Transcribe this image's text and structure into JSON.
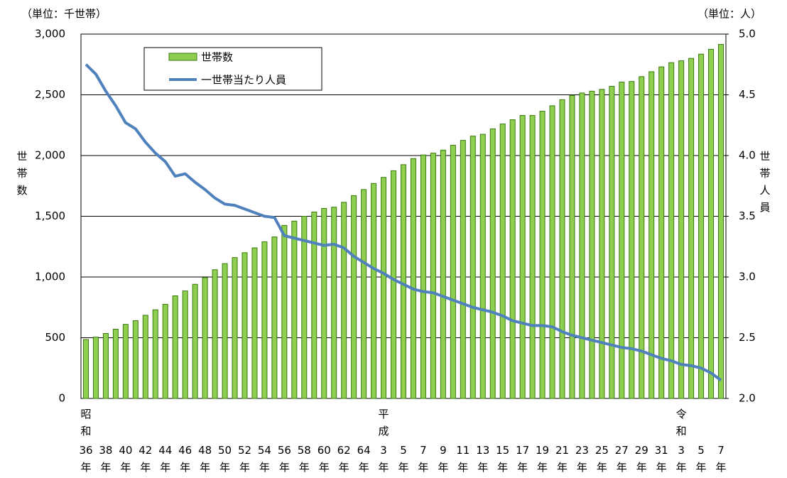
{
  "chart_data": {
    "type": "bar-line",
    "unit_left": "（単位：千世帯）",
    "unit_right": "（単位：人）",
    "ylabel": "世帯数",
    "y2label": "世帯人員",
    "categories": [
      "36年",
      null,
      "38年",
      null,
      "40年",
      null,
      "42年",
      null,
      "44年",
      null,
      "46年",
      null,
      "48年",
      null,
      "50年",
      null,
      "52年",
      null,
      "54年",
      null,
      "56年",
      null,
      "58年",
      null,
      "60年",
      null,
      "62年",
      null,
      "64年",
      null,
      "3年",
      null,
      "5年",
      null,
      "7年",
      null,
      "9年",
      null,
      "11年",
      null,
      "13年",
      null,
      "15年",
      null,
      "17年",
      null,
      "19年",
      null,
      "21年",
      null,
      "23年",
      null,
      "25年",
      null,
      "27年",
      null,
      "29年",
      null,
      "31年",
      null,
      "3年",
      null,
      "5年",
      null,
      "7年"
    ],
    "era_labels": [
      "昭和",
      null,
      null,
      null,
      null,
      null,
      null,
      null,
      null,
      null,
      null,
      null,
      null,
      null,
      null,
      null,
      null,
      null,
      null,
      null,
      null,
      null,
      null,
      null,
      null,
      null,
      null,
      null,
      null,
      null,
      "平成",
      null,
      null,
      null,
      null,
      null,
      null,
      null,
      null,
      null,
      null,
      null,
      null,
      null,
      null,
      null,
      null,
      null,
      null,
      null,
      null,
      null,
      null,
      null,
      null,
      null,
      null,
      null,
      null,
      null,
      "令和",
      null,
      null,
      null,
      null
    ],
    "series": [
      {
        "name": "世帯数",
        "color": "#8fcf4f",
        "values": [
          485,
          505,
          535,
          570,
          610,
          640,
          685,
          730,
          775,
          845,
          885,
          940,
          995,
          1060,
          1110,
          1160,
          1200,
          1240,
          1290,
          1330,
          1425,
          1460,
          1500,
          1535,
          1565,
          1575,
          1615,
          1670,
          1720,
          1770,
          1820,
          1875,
          1925,
          1975,
          2005,
          2020,
          2045,
          2085,
          2125,
          2160,
          2175,
          2220,
          2260,
          2295,
          2330,
          2330,
          2365,
          2410,
          2460,
          2495,
          2515,
          2530,
          2545,
          2570,
          2605,
          2610,
          2650,
          2690,
          2730,
          2765,
          2780,
          2800,
          2835,
          2875,
          2915
        ]
      },
      {
        "name": "一世帯当たり人員",
        "color": "#4f81bd",
        "axis": "y2",
        "values": [
          4.75,
          4.67,
          4.53,
          4.41,
          4.27,
          4.22,
          4.11,
          4.02,
          3.95,
          3.83,
          3.85,
          3.78,
          3.72,
          3.65,
          3.6,
          3.59,
          3.56,
          3.53,
          3.5,
          3.49,
          3.34,
          3.32,
          3.3,
          3.28,
          3.26,
          3.27,
          3.24,
          3.17,
          3.12,
          3.07,
          3.03,
          2.98,
          2.94,
          2.9,
          2.88,
          2.87,
          2.84,
          2.81,
          2.78,
          2.75,
          2.73,
          2.71,
          2.68,
          2.64,
          2.62,
          2.6,
          2.6,
          2.59,
          2.55,
          2.52,
          2.5,
          2.48,
          2.46,
          2.44,
          2.42,
          2.41,
          2.39,
          2.36,
          2.33,
          2.31,
          2.28,
          2.27,
          2.25,
          2.21,
          2.15
        ]
      }
    ],
    "ylim": [
      0,
      3000
    ],
    "yticks": [
      0,
      500,
      {
        "value": 1000,
        "label": "1,000"
      },
      {
        "value": 1500,
        "label": "1,500"
      },
      {
        "value": 2000,
        "label": "2,000"
      },
      {
        "value": 2500,
        "label": "2,500"
      },
      {
        "value": 3000,
        "label": "3,000"
      }
    ],
    "y2lim": [
      2,
      5
    ],
    "y2ticks": [
      {
        "value": 2,
        "label": "2.0"
      },
      {
        "value": 2.5,
        "label": "2.5"
      },
      {
        "value": 3,
        "label": "3.0"
      },
      {
        "value": 3.5,
        "label": "3.5"
      },
      {
        "value": 4,
        "label": "4.0"
      },
      {
        "value": 4.5,
        "label": "4.5"
      },
      {
        "value": 5,
        "label": "5.0"
      }
    ],
    "grid": true
  }
}
